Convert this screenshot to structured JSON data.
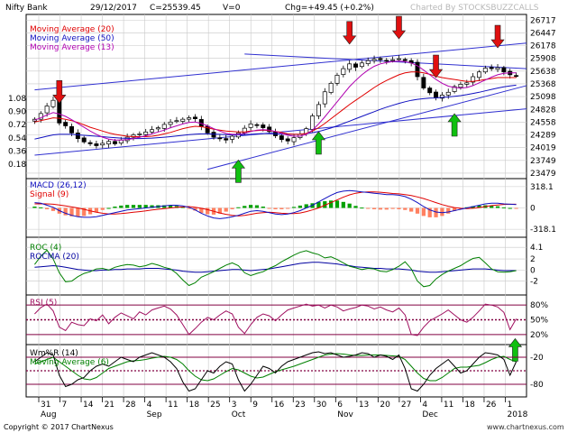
{
  "header": {
    "symbol": "Nifty Bank",
    "date": "29/12/2017",
    "close_text": "C=25539.45",
    "volume_text": "V=0",
    "change_text": "Chg=+49.45 (+0.2%)",
    "watermark": "Charted By STOCKSBUZZCALLS"
  },
  "footer": {
    "copyright": "Copyright © 2017 ChartNexus",
    "logo": "www.chartnexus.com"
  },
  "colors": {
    "bg": "#ffffff",
    "grid": "#c8c8c8",
    "frame": "#000000",
    "trendline": "#3030d0",
    "ma20": "#e00000",
    "ma50": "#1010c0",
    "ma13": "#b000b0",
    "candle": "#000000",
    "arrow_down": "#e01010",
    "arrow_up": "#10c010",
    "macd_pos": "#00a000",
    "macd_neg": "#ff8060",
    "roc": "#008000",
    "rocma": "#0000a0",
    "rsi": "#a01060",
    "rsi_ref": "#800040",
    "wr": "#000000",
    "wr_ma": "#008000"
  },
  "chart_data": [
    {
      "type": "candlestick",
      "panel": "price",
      "legend": [
        {
          "label": "Moving Average (20)",
          "color": "#e00000"
        },
        {
          "label": "Moving Average (50)",
          "color": "#1010c0"
        },
        {
          "label": "Moving Average (13)",
          "color": "#b000b0"
        }
      ],
      "y_ticks_right": [
        "26717",
        "26447",
        "26178",
        "25908",
        "25638",
        "25368",
        "25098",
        "24828",
        "24558",
        "24289",
        "24019",
        "23749",
        "23479"
      ],
      "y_ticks_left": [
        "1.08",
        "0.90",
        "0.72",
        "0.54",
        "0.36",
        "0.18"
      ],
      "x_ticks": [
        "31",
        "7",
        "14",
        "21",
        "28",
        "4",
        "11",
        "18",
        "25",
        "3",
        "9",
        "16",
        "23",
        "30",
        "6",
        "13",
        "20",
        "27",
        "4",
        "11",
        "18",
        "26",
        "1"
      ],
      "months": [
        "Aug",
        "Sep",
        "Oct",
        "Nov",
        "Dec",
        "2018"
      ],
      "closes": [
        24620,
        24740,
        24900,
        25020,
        24540,
        24480,
        24330,
        24210,
        24140,
        24100,
        24060,
        24110,
        24150,
        24100,
        24180,
        24240,
        24290,
        24310,
        24350,
        24400,
        24440,
        24510,
        24560,
        24590,
        24620,
        24650,
        24630,
        24470,
        24330,
        24240,
        24210,
        24180,
        24260,
        24330,
        24430,
        24520,
        24500,
        24440,
        24360,
        24270,
        24190,
        24160,
        24230,
        24300,
        24420,
        24690,
        24930,
        25200,
        25380,
        25550,
        25690,
        25790,
        25720,
        25810,
        25860,
        25890,
        25880,
        25860,
        25880,
        25900,
        25860,
        25810,
        25520,
        25280,
        25180,
        25080,
        25130,
        25190,
        25310,
        25360,
        25390,
        25520,
        25620,
        25700,
        25690,
        25710,
        25620,
        25560,
        25539
      ],
      "ma20": [
        24560,
        24590,
        24620,
        24650,
        24640,
        24620,
        24590,
        24550,
        24500,
        24450,
        24410,
        24370,
        24330,
        24300,
        24280,
        24260,
        24250,
        24250,
        24250,
        24260,
        24280,
        24310,
        24340,
        24380,
        24420,
        24450,
        24470,
        24460,
        24440,
        24410,
        24390,
        24370,
        24360,
        24350,
        24350,
        24370,
        24380,
        24390,
        24380,
        24360,
        24340,
        24310,
        24300,
        24300,
        24320,
        24370,
        24440,
        24530,
        24630,
        24730,
        24830,
        24930,
        25020,
        25110,
        25200,
        25290,
        25370,
        25440,
        25500,
        25560,
        25600,
        25620,
        25620,
        25600,
        25570,
        25530,
        25500,
        25480,
        25460,
        25440,
        25420,
        25420,
        25440,
        25460,
        25480,
        25500,
        25500,
        25500,
        25500
      ],
      "ma50": [
        24200,
        24230,
        24260,
        24290,
        24300,
        24300,
        24300,
        24290,
        24280,
        24270,
        24260,
        24250,
        24240,
        24230,
        24220,
        24215,
        24210,
        24210,
        24215,
        24220,
        24230,
        24240,
        24250,
        24265,
        24280,
        24295,
        24305,
        24310,
        24310,
        24305,
        24300,
        24295,
        24290,
        24290,
        24295,
        24300,
        24310,
        24315,
        24315,
        24310,
        24305,
        24300,
        24300,
        24305,
        24315,
        24335,
        24360,
        24395,
        24435,
        24480,
        24530,
        24580,
        24630,
        24680,
        24730,
        24780,
        24830,
        24875,
        24915,
        24955,
        24990,
        25020,
        25040,
        25055,
        25065,
        25070,
        25080,
        25090,
        25105,
        25120,
        25140,
        25165,
        25190,
        25220,
        25250,
        25280,
        25305,
        25325,
        25340
      ],
      "ma13": [
        24600,
        24650,
        24710,
        24760,
        24730,
        24680,
        24610,
        24530,
        24450,
        24370,
        24300,
        24240,
        24200,
        24180,
        24180,
        24190,
        24210,
        24240,
        24270,
        24310,
        24350,
        24390,
        24440,
        24480,
        24520,
        24550,
        24560,
        24530,
        24480,
        24420,
        24370,
        24320,
        24300,
        24300,
        24320,
        24360,
        24390,
        24400,
        24390,
        24360,
        24320,
        24280,
        24260,
        24260,
        24300,
        24390,
        24520,
        24670,
        24830,
        24990,
        25150,
        25310,
        25440,
        25560,
        25660,
        25740,
        25790,
        25820,
        25840,
        25850,
        25840,
        25810,
        25750,
        25660,
        25560,
        25460,
        25380,
        25320,
        25290,
        25280,
        25290,
        25330,
        25390,
        25450,
        25510,
        25560,
        25590,
        25600,
        25600
      ],
      "trendlines": [
        {
          "from": [
            0,
            25240
          ],
          "to": [
            84,
            26230
          ]
        },
        {
          "from": [
            34,
            26000
          ],
          "to": [
            84,
            25690
          ]
        },
        {
          "from": [
            28,
            23560
          ],
          "to": [
            84,
            25330
          ]
        },
        {
          "from": [
            0,
            23860
          ],
          "to": [
            84,
            24840
          ]
        }
      ],
      "markers": [
        {
          "kind": "down",
          "index": 4
        },
        {
          "kind": "down",
          "index": 51
        },
        {
          "kind": "down",
          "index": 59
        },
        {
          "kind": "down",
          "index": 65
        },
        {
          "kind": "down",
          "index": 75
        },
        {
          "kind": "down",
          "index": 79
        },
        {
          "kind": "up",
          "index": 33
        },
        {
          "kind": "up",
          "index": 46
        },
        {
          "kind": "up",
          "index": 68
        }
      ]
    },
    {
      "type": "histogram-line",
      "panel": "macd",
      "legend": [
        {
          "label": "MACD (26,12)",
          "color": "#1010c0"
        },
        {
          "label": "Signal (9)",
          "color": "#e00000"
        }
      ],
      "y_ticks": [
        "318.1",
        "0",
        "-318.1"
      ],
      "macd": [
        80,
        70,
        40,
        10,
        -40,
        -80,
        -110,
        -130,
        -140,
        -140,
        -130,
        -110,
        -90,
        -70,
        -50,
        -30,
        -20,
        -10,
        0,
        10,
        20,
        30,
        40,
        40,
        30,
        10,
        -30,
        -80,
        -120,
        -150,
        -160,
        -150,
        -130,
        -110,
        -80,
        -50,
        -40,
        -50,
        -70,
        -90,
        -100,
        -90,
        -70,
        -40,
        0,
        40,
        90,
        140,
        190,
        230,
        250,
        260,
        250,
        240,
        230,
        220,
        210,
        200,
        200,
        190,
        170,
        130,
        80,
        20,
        -30,
        -60,
        -70,
        -60,
        -40,
        -20,
        0,
        20,
        40,
        60,
        70,
        70,
        60,
        55,
        50
      ],
      "signal": [
        60,
        62,
        60,
        55,
        45,
        30,
        15,
        0,
        -20,
        -45,
        -65,
        -80,
        -90,
        -90,
        -85,
        -75,
        -65,
        -55,
        -45,
        -30,
        -20,
        -10,
        0,
        10,
        15,
        20,
        10,
        -5,
        -25,
        -50,
        -75,
        -95,
        -110,
        -120,
        -110,
        -95,
        -80,
        -70,
        -65,
        -70,
        -80,
        -85,
        -85,
        -75,
        -55,
        -30,
        0,
        40,
        80,
        120,
        160,
        195,
        220,
        235,
        240,
        240,
        235,
        225,
        215,
        210,
        200,
        185,
        165,
        140,
        110,
        80,
        50,
        25,
        5,
        -5,
        -10,
        -5,
        5,
        20,
        35,
        45,
        52,
        55,
        55
      ]
    },
    {
      "type": "line",
      "panel": "roc",
      "legend": [
        {
          "label": "ROC (4)",
          "color": "#008000"
        },
        {
          "label": "ROCMA (20)",
          "color": "#0000a0"
        }
      ],
      "y_ticks": [
        "4.1",
        "2",
        "0",
        "-2"
      ],
      "roc": [
        1.0,
        2.5,
        3.6,
        2.0,
        -0.5,
        -2.1,
        -2.0,
        -1.2,
        -0.6,
        -0.3,
        0.2,
        0.3,
        0.0,
        0.5,
        0.8,
        1.0,
        0.9,
        0.6,
        0.8,
        1.2,
        0.9,
        0.5,
        0.2,
        -0.6,
        -1.8,
        -2.8,
        -2.3,
        -1.3,
        -0.8,
        -0.3,
        0.3,
        0.9,
        1.3,
        0.8,
        -0.5,
        -1.0,
        -0.6,
        -0.3,
        0.3,
        0.8,
        1.5,
        2.1,
        2.7,
        3.2,
        3.5,
        3.1,
        2.8,
        2.2,
        2.4,
        1.9,
        1.3,
        0.7,
        0.4,
        0.1,
        0.3,
        0.2,
        -0.2,
        -0.3,
        0.1,
        0.7,
        1.5,
        0.2,
        -2.0,
        -3.0,
        -2.8,
        -1.6,
        -0.8,
        -0.2,
        0.3,
        0.8,
        1.5,
        2.1,
        2.3,
        1.3,
        0.2,
        -0.3,
        -0.4,
        -0.3,
        -0.1
      ],
      "rocma": [
        0.5,
        0.6,
        0.7,
        0.8,
        0.7,
        0.5,
        0.3,
        0.1,
        0.0,
        -0.1,
        -0.1,
        0.0,
        0.0,
        0.1,
        0.1,
        0.2,
        0.2,
        0.2,
        0.3,
        0.3,
        0.3,
        0.2,
        0.1,
        0.0,
        -0.2,
        -0.3,
        -0.4,
        -0.4,
        -0.3,
        -0.2,
        -0.1,
        0.0,
        0.1,
        0.1,
        0.0,
        -0.1,
        0.0,
        0.1,
        0.2,
        0.4,
        0.6,
        0.8,
        1.0,
        1.2,
        1.3,
        1.4,
        1.4,
        1.3,
        1.2,
        1.1,
        0.9,
        0.8,
        0.6,
        0.5,
        0.4,
        0.3,
        0.3,
        0.2,
        0.2,
        0.2,
        0.1,
        0.0,
        -0.2,
        -0.3,
        -0.4,
        -0.4,
        -0.3,
        -0.2,
        -0.1,
        0.0,
        0.1,
        0.2,
        0.2,
        0.2,
        0.1,
        0.0,
        -0.1,
        -0.1,
        -0.1
      ]
    },
    {
      "type": "line",
      "panel": "rsi",
      "legend": [
        {
          "label": "RSI (5)",
          "color": "#a01060"
        }
      ],
      "y_ticks": [
        "80%",
        "50%",
        "20%"
      ],
      "reference_lines": [
        80,
        50,
        20
      ],
      "rsi": [
        62,
        75,
        82,
        68,
        35,
        28,
        45,
        40,
        38,
        52,
        48,
        60,
        42,
        55,
        64,
        58,
        52,
        66,
        60,
        70,
        74,
        78,
        72,
        60,
        40,
        20,
        32,
        45,
        55,
        50,
        60,
        68,
        62,
        35,
        22,
        40,
        55,
        62,
        58,
        48,
        60,
        70,
        74,
        78,
        82,
        78,
        80,
        74,
        80,
        76,
        68,
        72,
        75,
        80,
        78,
        72,
        76,
        70,
        66,
        74,
        60,
        20,
        18,
        35,
        48,
        55,
        62,
        70,
        60,
        50,
        45,
        55,
        68,
        82,
        80,
        76,
        65,
        30,
        52
      ],
      "markers": [
        {
          "kind": "up",
          "index": 79
        }
      ]
    },
    {
      "type": "line",
      "panel": "williams_r",
      "legend": [
        {
          "label": "Wm%R (14)",
          "color": "#000000"
        },
        {
          "label": "Moving Average (6)",
          "color": "#008000"
        }
      ],
      "y_ticks": [
        "-20",
        "-80"
      ],
      "reference_lines": [
        -20,
        -50,
        -80
      ],
      "wr": [
        -30,
        -20,
        -10,
        -15,
        -60,
        -85,
        -80,
        -70,
        -65,
        -50,
        -40,
        -35,
        -40,
        -30,
        -20,
        -25,
        -30,
        -20,
        -15,
        -10,
        -15,
        -20,
        -30,
        -45,
        -75,
        -95,
        -90,
        -70,
        -50,
        -55,
        -40,
        -30,
        -35,
        -70,
        -95,
        -80,
        -60,
        -40,
        -45,
        -55,
        -40,
        -30,
        -25,
        -20,
        -15,
        -10,
        -8,
        -12,
        -10,
        -15,
        -20,
        -18,
        -15,
        -10,
        -12,
        -20,
        -15,
        -18,
        -25,
        -15,
        -45,
        -90,
        -95,
        -80,
        -60,
        -45,
        -35,
        -25,
        -40,
        -55,
        -50,
        -35,
        -20,
        -10,
        -12,
        -15,
        -25,
        -60,
        -30
      ],
      "wr_ma": [
        -35,
        -30,
        -25,
        -20,
        -30,
        -40,
        -50,
        -60,
        -68,
        -70,
        -65,
        -55,
        -45,
        -40,
        -35,
        -30,
        -28,
        -27,
        -25,
        -22,
        -20,
        -18,
        -20,
        -25,
        -35,
        -50,
        -62,
        -70,
        -72,
        -68,
        -60,
        -52,
        -45,
        -48,
        -55,
        -62,
        -66,
        -64,
        -58,
        -52,
        -48,
        -44,
        -40,
        -35,
        -30,
        -25,
        -20,
        -15,
        -13,
        -12,
        -13,
        -15,
        -16,
        -16,
        -15,
        -15,
        -15,
        -16,
        -17,
        -18,
        -25,
        -40,
        -55,
        -67,
        -72,
        -72,
        -65,
        -55,
        -45,
        -42,
        -42,
        -40,
        -38,
        -32,
        -25,
        -20,
        -18,
        -25,
        -30
      ]
    }
  ]
}
